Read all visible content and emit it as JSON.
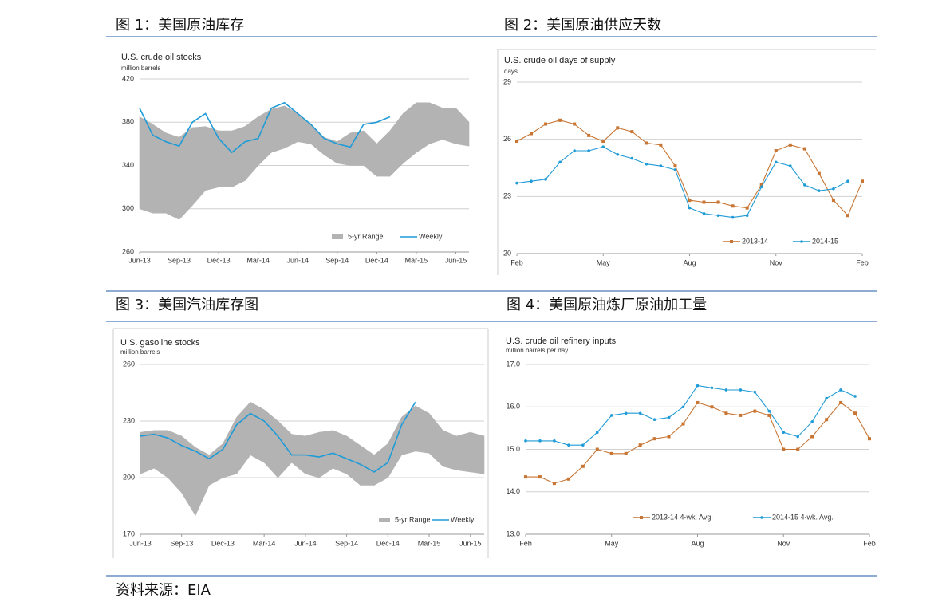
{
  "captions": [
    "图 1：美国原油库存",
    "图 2：美国原油供应天数",
    "图 3：美国汽油库存图",
    "图 4：美国原油炼厂原油加工量"
  ],
  "source": "资料来源：EIA",
  "chart_data": [
    {
      "type": "line",
      "title": "U.S. crude oil stocks",
      "subtitle": "million barrels",
      "categories": [
        "Jun-13",
        null,
        null,
        "Sep-13",
        null,
        null,
        "Dec-13",
        null,
        null,
        "Mar-14",
        null,
        null,
        "Jun-14",
        null,
        null,
        "Sep-14",
        null,
        null,
        "Dec-14",
        null,
        null,
        "Mar-15",
        null,
        null,
        "Jun-15",
        null
      ],
      "ylim": [
        260,
        420
      ],
      "yticks": [
        260,
        300,
        340,
        380,
        420
      ],
      "grid": true,
      "series": [
        {
          "name": "5-yr Range",
          "color": "#b3b3b3",
          "low": [
            300,
            296,
            296,
            290,
            303,
            317,
            320,
            320,
            326,
            340,
            352,
            356,
            362,
            360,
            350,
            342,
            340,
            340,
            330,
            330,
            342,
            352,
            360,
            364,
            360,
            358
          ],
          "high": [
            385,
            378,
            370,
            366,
            375,
            376,
            372,
            372,
            376,
            385,
            392,
            395,
            388,
            378,
            366,
            362,
            370,
            372,
            360,
            372,
            388,
            398,
            398,
            393,
            393,
            380
          ]
        },
        {
          "name": "Weekly",
          "color": "#1f9bd7",
          "values": [
            393,
            368,
            362,
            358,
            380,
            388,
            365,
            352,
            362,
            365,
            393,
            398,
            388,
            378,
            365,
            360,
            357,
            378,
            380,
            385,
            null,
            null,
            null,
            null,
            null,
            null
          ]
        }
      ]
    },
    {
      "type": "line",
      "title": "U.S. crude oil days of supply",
      "subtitle": "days",
      "markers": true,
      "categories": [
        "Feb",
        null,
        null,
        null,
        null,
        null,
        "May",
        null,
        null,
        null,
        null,
        null,
        "Aug",
        null,
        null,
        null,
        null,
        null,
        "Nov",
        null,
        null,
        null,
        null,
        null,
        "Feb"
      ],
      "ylim": [
        20,
        29
      ],
      "yticks": [
        20,
        23,
        26,
        29
      ],
      "grid": true,
      "series": [
        {
          "name": "2013-14",
          "color": "#c87533",
          "marker": "square",
          "values": [
            25.9,
            26.3,
            26.8,
            27.0,
            26.8,
            26.2,
            25.9,
            26.6,
            26.4,
            25.8,
            25.7,
            24.6,
            22.8,
            22.7,
            22.7,
            22.5,
            22.4,
            23.6,
            25.4,
            25.7,
            25.5,
            24.2,
            22.8,
            22.0,
            23.8
          ]
        },
        {
          "name": "2014-15",
          "color": "#1f9bd7",
          "marker": "circle",
          "values": [
            23.7,
            23.8,
            23.9,
            24.8,
            25.4,
            25.4,
            25.6,
            25.2,
            25.0,
            24.7,
            24.6,
            24.4,
            22.4,
            22.1,
            22.0,
            21.9,
            22.0,
            23.5,
            24.8,
            24.6,
            23.6,
            23.3,
            23.4,
            23.8,
            null
          ]
        }
      ]
    },
    {
      "type": "line",
      "title": "U.S. gasoline stocks",
      "subtitle": "million barrels",
      "categories": [
        "Jun-13",
        null,
        null,
        "Sep-13",
        null,
        null,
        "Dec-13",
        null,
        null,
        "Mar-14",
        null,
        null,
        "Jun-14",
        null,
        null,
        "Sep-14",
        null,
        null,
        "Dec-14",
        null,
        null,
        "Mar-15",
        null,
        null,
        "Jun-15",
        null
      ],
      "ylim": [
        170,
        260
      ],
      "yticks": [
        170,
        200,
        230,
        260
      ],
      "grid": true,
      "series": [
        {
          "name": "5-yr Range",
          "color": "#b3b3b3",
          "low": [
            202,
            205,
            200,
            192,
            180,
            196,
            200,
            202,
            212,
            208,
            200,
            208,
            202,
            200,
            205,
            202,
            196,
            196,
            200,
            212,
            214,
            213,
            206,
            204,
            203,
            202
          ],
          "high": [
            224,
            225,
            225,
            222,
            216,
            212,
            218,
            232,
            240,
            236,
            230,
            223,
            222,
            224,
            225,
            222,
            217,
            212,
            218,
            232,
            238,
            234,
            225,
            222,
            224,
            222
          ]
        },
        {
          "name": "Weekly",
          "color": "#1f9bd7",
          "values": [
            222,
            223,
            221,
            217,
            214,
            210,
            215,
            228,
            234,
            230,
            222,
            212,
            212,
            211,
            213,
            210,
            207,
            203,
            208,
            228,
            240,
            null,
            null,
            null,
            null,
            null
          ]
        }
      ]
    },
    {
      "type": "line",
      "title": "U.S. crude oil refinery inputs",
      "subtitle": "million barrels per day",
      "markers": true,
      "categories": [
        "Feb",
        null,
        null,
        null,
        null,
        null,
        "May",
        null,
        null,
        null,
        null,
        null,
        "Aug",
        null,
        null,
        null,
        null,
        null,
        "Nov",
        null,
        null,
        null,
        null,
        null,
        "Feb"
      ],
      "ylim": [
        13,
        17
      ],
      "yticks": [
        {
          "value": 13,
          "label": "13.0"
        },
        {
          "value": 14,
          "label": "14.0"
        },
        {
          "value": 15,
          "label": "15.0"
        },
        {
          "value": 16,
          "label": "16.0"
        },
        {
          "value": 17,
          "label": "17.0"
        }
      ],
      "grid": true,
      "series": [
        {
          "name": "2013-14  4-wk. Avg.",
          "color": "#c87533",
          "marker": "square",
          "values": [
            14.35,
            14.35,
            14.2,
            14.3,
            14.6,
            15.0,
            14.9,
            14.9,
            15.1,
            15.25,
            15.3,
            15.6,
            16.1,
            16.0,
            15.85,
            15.8,
            15.9,
            15.8,
            15.0,
            15.0,
            15.3,
            15.7,
            16.1,
            15.85,
            15.25
          ]
        },
        {
          "name": "2014-15  4-wk. Avg.",
          "color": "#1f9bd7",
          "marker": "circle",
          "values": [
            15.2,
            15.2,
            15.2,
            15.1,
            15.1,
            15.4,
            15.8,
            15.85,
            15.85,
            15.7,
            15.75,
            16.0,
            16.5,
            16.45,
            16.4,
            16.4,
            16.35,
            15.9,
            15.4,
            15.3,
            15.65,
            16.2,
            16.4,
            16.25,
            null
          ]
        }
      ]
    }
  ]
}
